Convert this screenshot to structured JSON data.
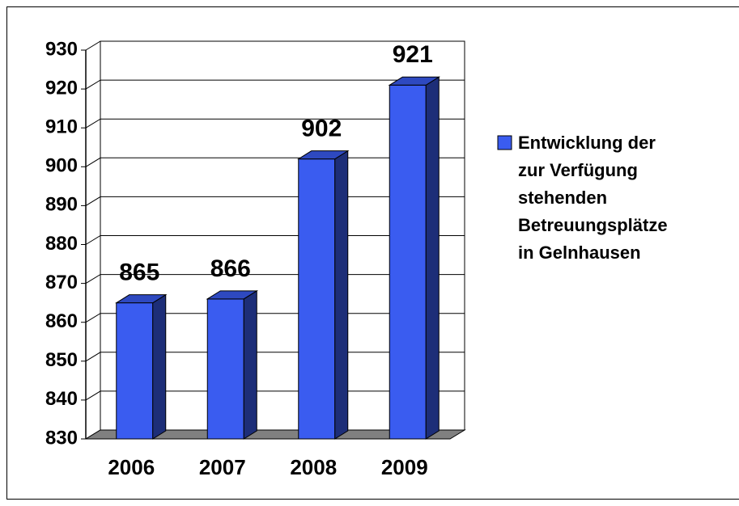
{
  "chart_data": {
    "type": "bar3d",
    "categories": [
      "2006",
      "2007",
      "2008",
      "2009"
    ],
    "series": [
      {
        "name": "Entwicklung der zur Verfügung stehenden Betreuungsplätze in Gelnhausen",
        "color": "#3a5cf0",
        "values": [
          865,
          866,
          902,
          921
        ]
      }
    ],
    "ylim": [
      830,
      930
    ],
    "yticks": [
      830,
      840,
      850,
      860,
      870,
      880,
      890,
      900,
      910,
      920,
      930
    ],
    "grid": true,
    "legend": "right"
  }
}
